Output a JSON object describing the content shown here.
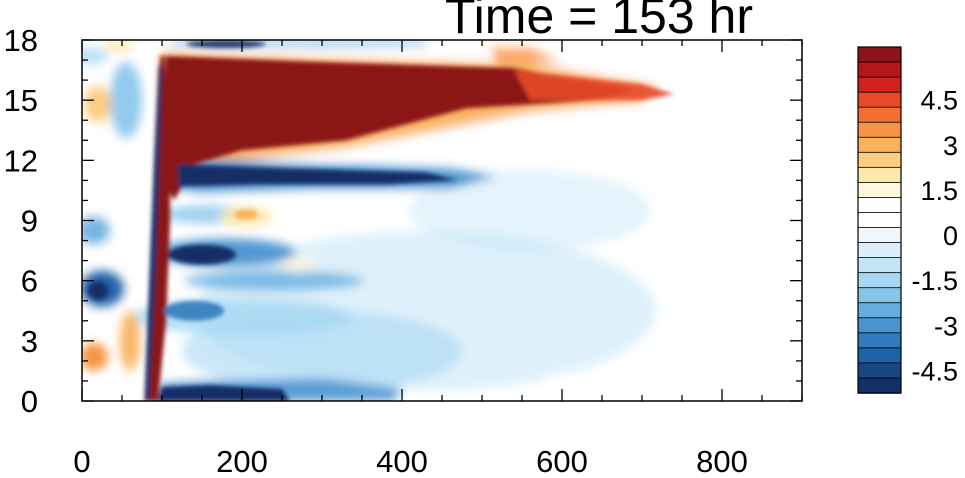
{
  "chart_data": {
    "type": "heatmap",
    "title": "Time = 153 hr",
    "xlabel": "",
    "ylabel": "",
    "xlim": [
      0,
      900
    ],
    "ylim": [
      0,
      18
    ],
    "x_ticks": [
      0,
      200,
      400,
      600,
      800
    ],
    "x_tick_labels": [
      "0",
      "200",
      "400",
      "600",
      "800"
    ],
    "y_ticks": [
      0,
      3,
      6,
      9,
      12,
      15,
      18
    ],
    "y_tick_labels": [
      "0",
      "3",
      "6",
      "9",
      "12",
      "15",
      "18"
    ],
    "grid": false,
    "legend": "right (vertical colorbar)",
    "colorbar": {
      "labels": [
        "4.5",
        "3",
        "1.5",
        "0",
        "-1.5",
        "-3",
        "-4.5"
      ],
      "label_values": [
        4.5,
        3,
        1.5,
        0,
        -1.5,
        -3,
        -4.5
      ],
      "levels": [
        -6,
        -5.5,
        -5,
        -4.5,
        -4,
        -3.5,
        -3,
        -2.5,
        -2,
        -1.5,
        -1,
        -0.5,
        0,
        0.5,
        1,
        1.5,
        2,
        2.5,
        3,
        3.5,
        4,
        4.5,
        5,
        5.5,
        6
      ],
      "colors_top_to_bottom": [
        "#8b1319",
        "#b3161b",
        "#d32121",
        "#e64a29",
        "#f36e30",
        "#f79443",
        "#fab15c",
        "#fbcd7f",
        "#fde7a9",
        "#fff8dc",
        "#ffffff",
        "#ffffff",
        "#eef7fd",
        "#daeffb",
        "#c3e5f8",
        "#a6d7f3",
        "#86c4ec",
        "#66aee0",
        "#4994d0",
        "#317bbd",
        "#2161a7",
        "#1a4686",
        "#142f66"
      ]
    },
    "features": [
      {
        "name": "upper-positive-band",
        "x_start": 100,
        "x_end": 720,
        "y_top_start": 17.0,
        "y_top_end": 15.5,
        "y_bottom_start": 12.5,
        "y_bottom_end": 15.2,
        "peak": 6
      },
      {
        "name": "leading-edge-positive",
        "x": [
          80,
          110
        ],
        "y": [
          0,
          17
        ],
        "peak": 6
      },
      {
        "name": "negative-band-11",
        "x": [
          130,
          500
        ],
        "y_center": 11.2,
        "peak": -6
      },
      {
        "name": "negative-band-7",
        "x": [
          140,
          330
        ],
        "y_center": 7.3,
        "peak": -5
      },
      {
        "name": "negative-band-surface",
        "x": [
          100,
          400
        ],
        "y_center": 0.4,
        "peak": -5
      },
      {
        "name": "positive-cell-9",
        "x": [
          180,
          230
        ],
        "y_center": 9.2,
        "peak": 2
      }
    ]
  }
}
